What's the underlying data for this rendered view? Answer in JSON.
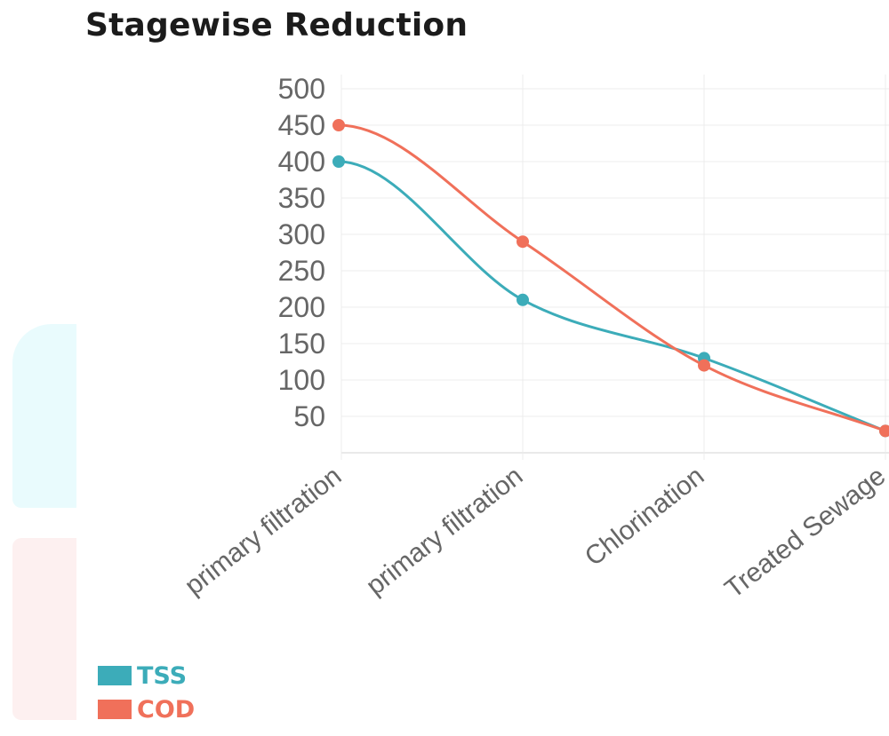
{
  "chart_data": {
    "type": "line",
    "title": "Stagewise Reduction",
    "categories": [
      "primary filtration",
      "primary filtration",
      "Chlorination",
      "Treated Sewage"
    ],
    "series": [
      {
        "name": "TSS",
        "values": [
          400,
          210,
          130,
          30
        ],
        "color": "#3cacb9"
      },
      {
        "name": "COD",
        "values": [
          450,
          290,
          120,
          30
        ],
        "color": "#f0705a"
      }
    ],
    "y_ticks": [
      50,
      100,
      150,
      200,
      250,
      300,
      350,
      400,
      450,
      500
    ],
    "ylim": [
      0,
      500
    ],
    "xlabel": "",
    "ylabel": "",
    "grid": true,
    "legend_position": "bottom-left",
    "curve": "smooth"
  }
}
